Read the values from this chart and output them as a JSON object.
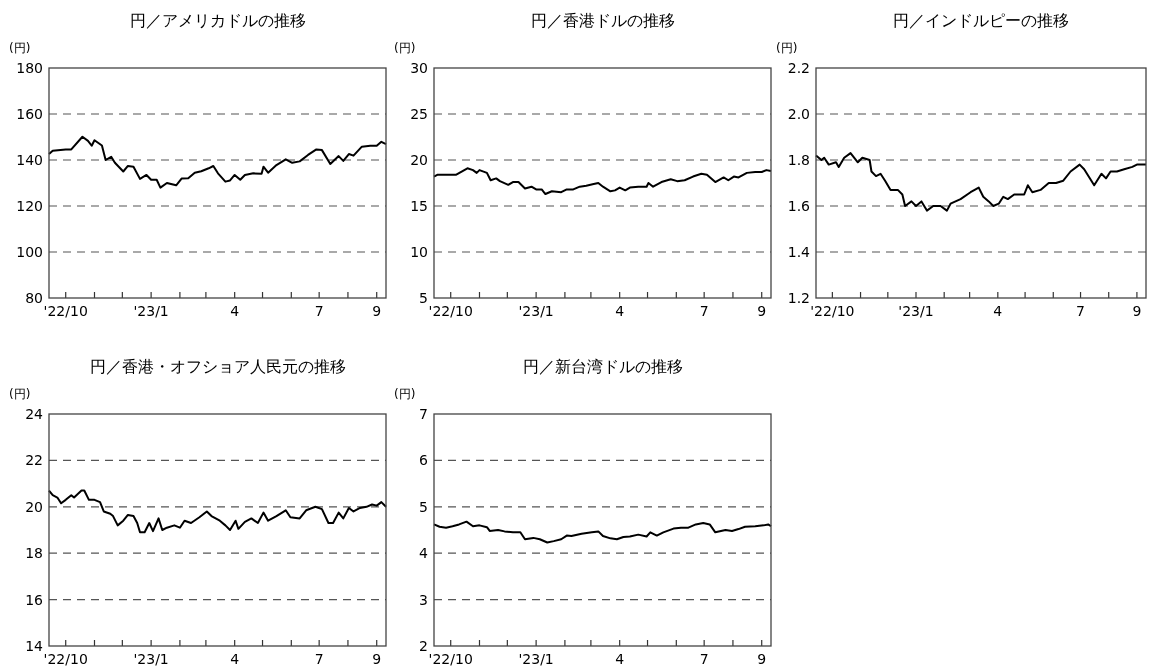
{
  "chart_data": [
    {
      "type": "line",
      "title": "円／アメリカドルの推移",
      "ylabel": "(円)",
      "grid": "y",
      "xlim": [
        "2022-09-13",
        "2023-09-11"
      ],
      "ylim": [
        80,
        180
      ],
      "yticks": [
        80,
        100,
        120,
        140,
        160,
        180
      ],
      "xticks": [
        {
          "value": "2022-10-01",
          "label": "'22/10"
        },
        {
          "value": "2022-11-01",
          "label": null
        },
        {
          "value": "2022-12-01",
          "label": null
        },
        {
          "value": "2023-01-01",
          "label": "'23/1"
        },
        {
          "value": "2023-02-01",
          "label": null
        },
        {
          "value": "2023-03-01",
          "label": null
        },
        {
          "value": "2023-04-01",
          "label": "4"
        },
        {
          "value": "2023-05-01",
          "label": null
        },
        {
          "value": "2023-06-01",
          "label": null
        },
        {
          "value": "2023-07-01",
          "label": "7"
        },
        {
          "value": "2023-08-01",
          "label": null
        },
        {
          "value": "2023-09-01",
          "label": "9"
        }
      ],
      "series": [
        {
          "color": "#000000",
          "x": [
            "2022-09-13",
            "2022-09-17",
            "2022-10-01",
            "2022-10-07",
            "2022-10-19",
            "2022-10-25",
            "2022-10-29",
            "2022-11-01",
            "2022-11-09",
            "2022-11-13",
            "2022-11-19",
            "2022-11-23",
            "2022-12-02",
            "2022-12-07",
            "2022-12-13",
            "2022-12-20",
            "2022-12-27",
            "2023-01-01",
            "2023-01-07",
            "2023-01-11",
            "2023-01-18",
            "2023-01-28",
            "2023-02-03",
            "2023-02-10",
            "2023-02-17",
            "2023-02-24",
            "2023-03-04",
            "2023-03-09",
            "2023-03-14",
            "2023-03-22",
            "2023-03-27",
            "2023-04-01",
            "2023-04-07",
            "2023-04-12",
            "2023-04-21",
            "2023-04-30",
            "2023-05-02",
            "2023-05-07",
            "2023-05-16",
            "2023-05-26",
            "2023-06-02",
            "2023-06-10",
            "2023-06-19",
            "2023-06-28",
            "2023-07-04",
            "2023-07-13",
            "2023-07-22",
            "2023-07-27",
            "2023-08-02",
            "2023-08-07",
            "2023-08-16",
            "2023-08-25",
            "2023-09-01",
            "2023-09-06",
            "2023-09-11"
          ],
          "values": [
            142.6,
            144,
            144.6,
            144.6,
            150.1,
            148.3,
            146.2,
            148.6,
            146.3,
            140,
            141.4,
            138.8,
            135,
            137.4,
            137.1,
            131.8,
            133.5,
            131.4,
            131.4,
            128,
            130,
            129,
            132,
            132.1,
            134.5,
            135.1,
            136.4,
            137.4,
            134.2,
            130.6,
            131.1,
            133.5,
            131.4,
            133.5,
            134.2,
            134,
            137.1,
            134.5,
            137.8,
            140.3,
            138.8,
            139.4,
            142.2,
            144.6,
            144.3,
            138.3,
            141.7,
            139.6,
            142.6,
            141.9,
            145.8,
            146.2,
            146.2,
            147.9,
            146.9
          ]
        }
      ]
    },
    {
      "type": "line",
      "title": "円／香港ドルの推移",
      "ylabel": "(円)",
      "grid": "y",
      "xlim": [
        "2022-09-13",
        "2023-09-11"
      ],
      "ylim": [
        5,
        30
      ],
      "yticks": [
        5,
        10,
        15,
        20,
        25,
        30
      ],
      "xticks": [
        {
          "value": "2022-10-01",
          "label": "'22/10"
        },
        {
          "value": "2022-11-01",
          "label": null
        },
        {
          "value": "2022-12-01",
          "label": null
        },
        {
          "value": "2023-01-01",
          "label": "'23/1"
        },
        {
          "value": "2023-02-01",
          "label": null
        },
        {
          "value": "2023-03-01",
          "label": null
        },
        {
          "value": "2023-04-01",
          "label": "4"
        },
        {
          "value": "2023-05-01",
          "label": null
        },
        {
          "value": "2023-06-01",
          "label": null
        },
        {
          "value": "2023-07-01",
          "label": "7"
        },
        {
          "value": "2023-08-01",
          "label": null
        },
        {
          "value": "2023-09-01",
          "label": "9"
        }
      ],
      "series": [
        {
          "color": "#000000",
          "x": [
            "2022-09-13",
            "2022-09-17",
            "2022-10-01",
            "2022-10-07",
            "2022-10-19",
            "2022-10-25",
            "2022-10-29",
            "2022-11-01",
            "2022-11-09",
            "2022-11-13",
            "2022-11-19",
            "2022-11-23",
            "2022-12-02",
            "2022-12-07",
            "2022-12-13",
            "2022-12-20",
            "2022-12-27",
            "2023-01-01",
            "2023-01-07",
            "2023-01-11",
            "2023-01-18",
            "2023-01-28",
            "2023-02-03",
            "2023-02-10",
            "2023-02-17",
            "2023-02-24",
            "2023-03-04",
            "2023-03-09",
            "2023-03-14",
            "2023-03-22",
            "2023-03-27",
            "2023-04-01",
            "2023-04-07",
            "2023-04-12",
            "2023-04-21",
            "2023-04-30",
            "2023-05-02",
            "2023-05-07",
            "2023-05-16",
            "2023-05-26",
            "2023-06-02",
            "2023-06-10",
            "2023-06-19",
            "2023-06-28",
            "2023-07-04",
            "2023-07-13",
            "2023-07-22",
            "2023-07-27",
            "2023-08-02",
            "2023-08-07",
            "2023-08-16",
            "2023-08-25",
            "2023-09-01",
            "2023-09-06",
            "2023-09-11"
          ],
          "values": [
            18.2,
            18.4,
            18.4,
            18.4,
            19.1,
            18.9,
            18.6,
            18.9,
            18.6,
            17.8,
            18.0,
            17.7,
            17.3,
            17.6,
            17.6,
            16.9,
            17.1,
            16.8,
            16.8,
            16.3,
            16.6,
            16.5,
            16.8,
            16.8,
            17.1,
            17.2,
            17.4,
            17.5,
            17.1,
            16.6,
            16.7,
            17.0,
            16.7,
            17.0,
            17.1,
            17.1,
            17.5,
            17.1,
            17.6,
            17.9,
            17.7,
            17.8,
            18.2,
            18.5,
            18.4,
            17.6,
            18.1,
            17.8,
            18.2,
            18.1,
            18.6,
            18.7,
            18.7,
            18.9,
            18.8
          ]
        }
      ]
    },
    {
      "type": "line",
      "title": "円／インドルピーの推移",
      "ylabel": "(円)",
      "grid": "y",
      "xlim": [
        "2022-09-13",
        "2023-09-11"
      ],
      "ylim": [
        1.2,
        2.2
      ],
      "yticks": [
        1.2,
        1.4,
        1.6,
        1.8,
        {
          "value": 2,
          "label": "2.0"
        },
        2.2
      ],
      "xticks": [
        {
          "value": "2022-10-01",
          "label": "'22/10"
        },
        {
          "value": "2022-11-01",
          "label": null
        },
        {
          "value": "2022-12-01",
          "label": null
        },
        {
          "value": "2023-01-01",
          "label": "'23/1"
        },
        {
          "value": "2023-02-01",
          "label": null
        },
        {
          "value": "2023-03-01",
          "label": null
        },
        {
          "value": "2023-04-01",
          "label": "4"
        },
        {
          "value": "2023-05-01",
          "label": null
        },
        {
          "value": "2023-06-01",
          "label": null
        },
        {
          "value": "2023-07-01",
          "label": "7"
        },
        {
          "value": "2023-08-01",
          "label": null
        },
        {
          "value": "2023-09-01",
          "label": "9"
        }
      ],
      "series": [
        {
          "color": "#000000",
          "x": [
            "2022-09-13",
            "2022-09-19",
            "2022-09-22",
            "2022-09-27",
            "2022-10-05",
            "2022-10-08",
            "2022-10-14",
            "2022-10-21",
            "2022-10-29",
            "2022-11-03",
            "2022-11-11",
            "2022-11-13",
            "2022-11-18",
            "2022-11-23",
            "2022-11-28",
            "2022-12-04",
            "2022-12-12",
            "2022-12-17",
            "2022-12-20",
            "2022-12-27",
            "2023-01-01",
            "2023-01-07",
            "2023-01-13",
            "2023-01-20",
            "2023-01-28",
            "2023-02-04",
            "2023-02-08",
            "2023-02-19",
            "2023-03-02",
            "2023-03-11",
            "2023-03-16",
            "2023-03-22",
            "2023-03-27",
            "2023-04-02",
            "2023-04-07",
            "2023-04-12",
            "2023-04-19",
            "2023-04-30",
            "2023-05-04",
            "2023-05-09",
            "2023-05-18",
            "2023-05-27",
            "2023-06-04",
            "2023-06-12",
            "2023-06-20",
            "2023-06-30",
            "2023-07-05",
            "2023-07-16",
            "2023-07-24",
            "2023-07-29",
            "2023-08-03",
            "2023-08-10",
            "2023-08-18",
            "2023-08-27",
            "2023-09-01",
            "2023-09-06",
            "2023-09-11"
          ],
          "values": [
            1.82,
            1.8,
            1.81,
            1.78,
            1.79,
            1.77,
            1.81,
            1.83,
            1.79,
            1.81,
            1.8,
            1.75,
            1.73,
            1.74,
            1.71,
            1.67,
            1.67,
            1.65,
            1.6,
            1.62,
            1.6,
            1.62,
            1.58,
            1.6,
            1.6,
            1.58,
            1.61,
            1.63,
            1.66,
            1.68,
            1.64,
            1.62,
            1.6,
            1.61,
            1.64,
            1.63,
            1.65,
            1.65,
            1.69,
            1.66,
            1.67,
            1.7,
            1.7,
            1.71,
            1.75,
            1.78,
            1.76,
            1.69,
            1.74,
            1.72,
            1.75,
            1.75,
            1.76,
            1.77,
            1.78,
            1.78,
            1.78
          ]
        }
      ]
    },
    {
      "type": "line",
      "title": "円／香港・オフショア人民元の推移",
      "ylabel": "(円)",
      "grid": "y",
      "xlim": [
        "2022-09-13",
        "2023-09-11"
      ],
      "ylim": [
        14,
        24
      ],
      "yticks": [
        14,
        16,
        18,
        20,
        22,
        24
      ],
      "xticks": [
        {
          "value": "2022-10-01",
          "label": "'22/10"
        },
        {
          "value": "2022-11-01",
          "label": null
        },
        {
          "value": "2022-12-01",
          "label": null
        },
        {
          "value": "2023-01-01",
          "label": "'23/1"
        },
        {
          "value": "2023-02-01",
          "label": null
        },
        {
          "value": "2023-03-01",
          "label": null
        },
        {
          "value": "2023-04-01",
          "label": "4"
        },
        {
          "value": "2023-05-01",
          "label": null
        },
        {
          "value": "2023-06-01",
          "label": null
        },
        {
          "value": "2023-07-01",
          "label": "7"
        },
        {
          "value": "2023-08-01",
          "label": null
        },
        {
          "value": "2023-09-01",
          "label": "9"
        }
      ],
      "series": [
        {
          "color": "#000000",
          "x": [
            "2022-09-13",
            "2022-09-17",
            "2022-09-22",
            "2022-09-26",
            "2022-10-01",
            "2022-10-07",
            "2022-10-10",
            "2022-10-18",
            "2022-10-21",
            "2022-10-26",
            "2022-11-01",
            "2022-11-07",
            "2022-11-11",
            "2022-11-18",
            "2022-11-21",
            "2022-11-26",
            "2022-12-02",
            "2022-12-07",
            "2022-12-13",
            "2022-12-17",
            "2022-12-20",
            "2022-12-25",
            "2022-12-30",
            "2023-01-03",
            "2023-01-09",
            "2023-01-13",
            "2023-01-18",
            "2023-01-26",
            "2023-02-01",
            "2023-02-06",
            "2023-02-13",
            "2023-02-22",
            "2023-03-02",
            "2023-03-07",
            "2023-03-16",
            "2023-03-22",
            "2023-03-27",
            "2023-04-02",
            "2023-04-05",
            "2023-04-12",
            "2023-04-19",
            "2023-04-26",
            "2023-05-02",
            "2023-05-07",
            "2023-05-16",
            "2023-05-26",
            "2023-05-31",
            "2023-06-10",
            "2023-06-17",
            "2023-06-27",
            "2023-07-04",
            "2023-07-11",
            "2023-07-16",
            "2023-07-22",
            "2023-07-27",
            "2023-08-02",
            "2023-08-07",
            "2023-08-14",
            "2023-08-21",
            "2023-08-27",
            "2023-09-01",
            "2023-09-06",
            "2023-09-11"
          ],
          "values": [
            20.7,
            20.5,
            20.4,
            20.15,
            20.3,
            20.5,
            20.4,
            20.7,
            20.7,
            20.3,
            20.3,
            20.2,
            19.8,
            19.7,
            19.6,
            19.2,
            19.4,
            19.65,
            19.6,
            19.3,
            18.9,
            18.9,
            19.3,
            18.95,
            19.5,
            19.0,
            19.1,
            19.2,
            19.1,
            19.4,
            19.3,
            19.55,
            19.8,
            19.6,
            19.4,
            19.2,
            19.0,
            19.4,
            19.05,
            19.35,
            19.5,
            19.3,
            19.75,
            19.4,
            19.6,
            19.85,
            19.55,
            19.5,
            19.85,
            20.0,
            19.9,
            19.3,
            19.3,
            19.75,
            19.5,
            19.95,
            19.8,
            19.95,
            20.0,
            20.1,
            20.05,
            20.2,
            20.0
          ]
        }
      ]
    },
    {
      "type": "line",
      "title": "円／新台湾ドルの推移",
      "ylabel": "(円)",
      "grid": "y",
      "xlim": [
        "2022-09-13",
        "2023-09-11"
      ],
      "ylim": [
        2,
        7
      ],
      "yticks": [
        2,
        3,
        4,
        5,
        6,
        7
      ],
      "xticks": [
        {
          "value": "2022-10-01",
          "label": "'22/10"
        },
        {
          "value": "2022-11-01",
          "label": null
        },
        {
          "value": "2022-12-01",
          "label": null
        },
        {
          "value": "2023-01-01",
          "label": "'23/1"
        },
        {
          "value": "2023-02-01",
          "label": null
        },
        {
          "value": "2023-03-01",
          "label": null
        },
        {
          "value": "2023-04-01",
          "label": "4"
        },
        {
          "value": "2023-05-01",
          "label": null
        },
        {
          "value": "2023-06-01",
          "label": null
        },
        {
          "value": "2023-07-01",
          "label": "7"
        },
        {
          "value": "2023-08-01",
          "label": null
        },
        {
          "value": "2023-09-01",
          "label": "9"
        }
      ],
      "series": [
        {
          "color": "#000000",
          "x": [
            "2022-09-13",
            "2022-09-19",
            "2022-09-26",
            "2022-10-03",
            "2022-10-10",
            "2022-10-18",
            "2022-10-25",
            "2022-11-01",
            "2022-11-09",
            "2022-11-12",
            "2022-11-21",
            "2022-11-28",
            "2022-12-07",
            "2022-12-15",
            "2022-12-20",
            "2022-12-29",
            "2023-01-05",
            "2023-01-13",
            "2023-01-20",
            "2023-01-28",
            "2023-02-03",
            "2023-02-08",
            "2023-02-19",
            "2023-03-02",
            "2023-03-09",
            "2023-03-14",
            "2023-03-22",
            "2023-03-29",
            "2023-04-05",
            "2023-04-12",
            "2023-04-21",
            "2023-04-30",
            "2023-05-04",
            "2023-05-11",
            "2023-05-18",
            "2023-05-29",
            "2023-06-06",
            "2023-06-14",
            "2023-06-22",
            "2023-06-30",
            "2023-07-07",
            "2023-07-13",
            "2023-07-24",
            "2023-07-31",
            "2023-08-07",
            "2023-08-14",
            "2023-08-25",
            "2023-09-03",
            "2023-09-08",
            "2023-09-11"
          ],
          "values": [
            4.62,
            4.57,
            4.55,
            4.58,
            4.62,
            4.68,
            4.58,
            4.6,
            4.56,
            4.48,
            4.5,
            4.47,
            4.45,
            4.45,
            4.3,
            4.33,
            4.3,
            4.23,
            4.26,
            4.3,
            4.38,
            4.37,
            4.42,
            4.45,
            4.47,
            4.37,
            4.32,
            4.3,
            4.35,
            4.36,
            4.4,
            4.36,
            4.45,
            4.38,
            4.45,
            4.53,
            4.55,
            4.55,
            4.62,
            4.65,
            4.62,
            4.45,
            4.5,
            4.48,
            4.52,
            4.57,
            4.58,
            4.6,
            4.62,
            4.58
          ]
        }
      ]
    }
  ]
}
